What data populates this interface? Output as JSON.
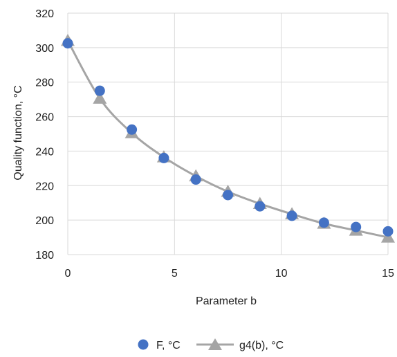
{
  "chart_data": {
    "type": "scatter",
    "title": "",
    "xlabel": "Parameter b",
    "ylabel": "Quality function, °C",
    "xlim": [
      0,
      15
    ],
    "ylim": [
      180,
      320
    ],
    "x_ticks": [
      0,
      5,
      10,
      15
    ],
    "y_ticks": [
      180,
      200,
      220,
      240,
      260,
      280,
      300,
      320
    ],
    "grid": true,
    "legend_position": "bottom",
    "series": [
      {
        "name": "F, °C",
        "marker": "circle",
        "line": false,
        "color": "#4472c4",
        "x": [
          0,
          1.5,
          3,
          4.5,
          6,
          7.5,
          9,
          10.5,
          12,
          13.5,
          15
        ],
        "values": [
          302.5,
          275,
          252.5,
          236,
          223.5,
          214.5,
          208,
          202.5,
          198.5,
          196,
          193.5
        ]
      },
      {
        "name": "g4(b), °C",
        "marker": "triangle",
        "line": true,
        "color": "#a5a5a5",
        "x": [
          0,
          1.5,
          3,
          4.5,
          6,
          7.5,
          9,
          10.5,
          12,
          13.5,
          15
        ],
        "values": [
          304,
          270.5,
          250.5,
          236.5,
          225.5,
          216.5,
          209.5,
          203.5,
          198,
          194,
          190
        ]
      }
    ]
  }
}
